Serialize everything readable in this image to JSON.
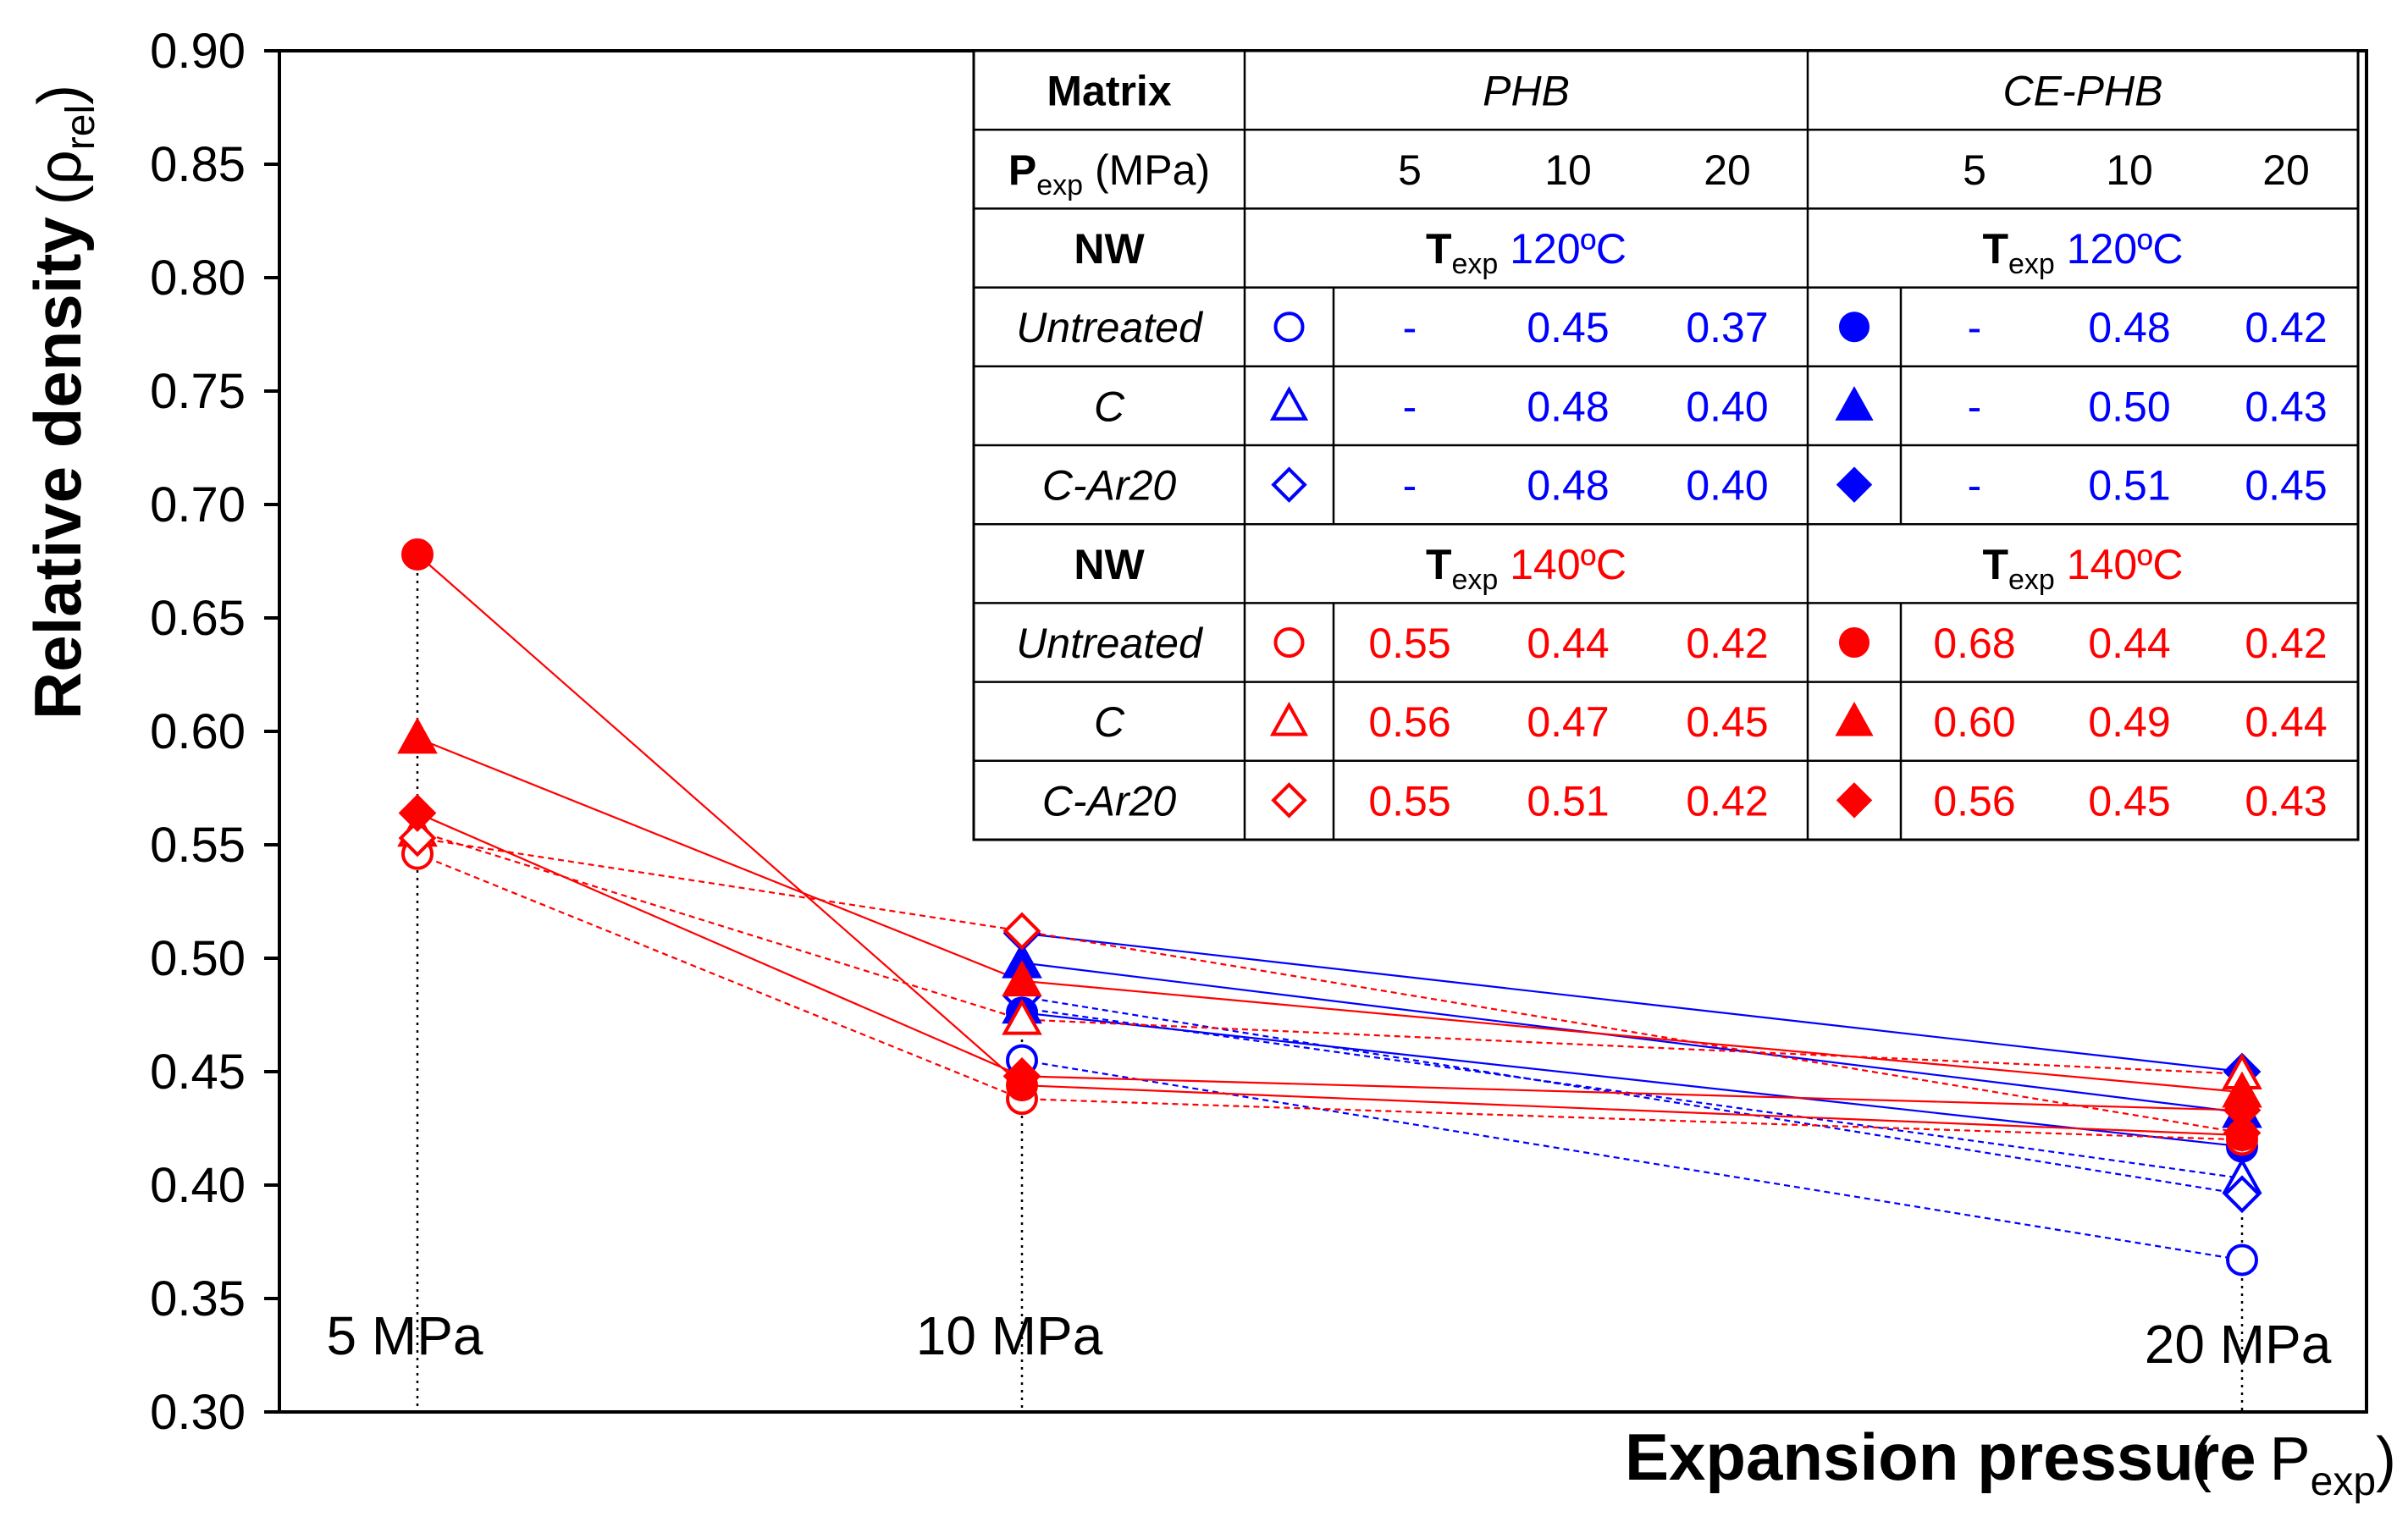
{
  "chart_data": {
    "type": "line",
    "title": "",
    "ylabel": "Relative density",
    "ylabel_symbol": "ρ",
    "ylabel_sub": "rel",
    "xlabel": "Expansion pressure",
    "xlabel_symbol": "P",
    "xlabel_sub": "exp",
    "ylim": [
      0.3,
      0.9
    ],
    "yticks": [
      "0.30",
      "0.35",
      "0.40",
      "0.45",
      "0.50",
      "0.55",
      "0.60",
      "0.65",
      "0.70",
      "0.75",
      "0.80",
      "0.85",
      "0.90"
    ],
    "categories": [
      "5 MPa",
      "10 MPa",
      "20 MPa"
    ],
    "series": [
      {
        "name": "PHB Untreated 120ºC",
        "color": "#0000ff",
        "marker": "circle",
        "filled": false,
        "dashed": true,
        "values": [
          null,
          0.455,
          0.367
        ]
      },
      {
        "name": "PHB C 120ºC",
        "color": "#0000ff",
        "marker": "triangle",
        "filled": false,
        "dashed": true,
        "values": [
          null,
          0.478,
          0.403
        ]
      },
      {
        "name": "PHB C-Ar20 120ºC",
        "color": "#0000ff",
        "marker": "diamond",
        "filled": false,
        "dashed": true,
        "values": [
          null,
          0.483,
          0.396
        ]
      },
      {
        "name": "CE-PHB Untreated 120ºC",
        "color": "#0000ff",
        "marker": "circle",
        "filled": true,
        "dashed": false,
        "values": [
          null,
          0.476,
          0.417
        ]
      },
      {
        "name": "CE-PHB C 120ºC",
        "color": "#0000ff",
        "marker": "triangle",
        "filled": true,
        "dashed": false,
        "values": [
          null,
          0.498,
          0.432
        ]
      },
      {
        "name": "CE-PHB C-Ar20 120ºC",
        "color": "#0000ff",
        "marker": "diamond",
        "filled": true,
        "dashed": false,
        "values": [
          null,
          0.511,
          0.45
        ]
      },
      {
        "name": "PHB Untreated 140ºC",
        "color": "#ff0000",
        "marker": "circle",
        "filled": false,
        "dashed": true,
        "values": [
          0.546,
          0.438,
          0.42
        ]
      },
      {
        "name": "PHB C 140ºC",
        "color": "#ff0000",
        "marker": "triangle",
        "filled": false,
        "dashed": true,
        "values": [
          0.556,
          0.473,
          0.449
        ]
      },
      {
        "name": "PHB C-Ar20 140ºC",
        "color": "#ff0000",
        "marker": "diamond",
        "filled": false,
        "dashed": true,
        "values": [
          0.553,
          0.512,
          0.423
        ]
      },
      {
        "name": "CE-PHB Untreated 140ºC",
        "color": "#ff0000",
        "marker": "circle",
        "filled": true,
        "dashed": false,
        "values": [
          0.678,
          0.444,
          0.422
        ]
      },
      {
        "name": "CE-PHB C 140ºC",
        "color": "#ff0000",
        "marker": "triangle",
        "filled": true,
        "dashed": false,
        "values": [
          0.597,
          0.49,
          0.441
        ]
      },
      {
        "name": "CE-PHB C-Ar20 140ºC",
        "color": "#ff0000",
        "marker": "diamond",
        "filled": true,
        "dashed": false,
        "values": [
          0.564,
          0.448,
          0.433
        ]
      }
    ],
    "table": {
      "matrix_label": "Matrix",
      "matrix_phb": "PHB",
      "matrix_cephb": "CE-PHB",
      "pexp_label_main": "P",
      "pexp_label_sub": "exp",
      "pexp_label_unit": " (MPa)",
      "pressures": [
        "5",
        "10",
        "20"
      ],
      "nw_label": "NW",
      "texp_main": "T",
      "texp_sub": "exp",
      "temp_120": " 120ºC",
      "temp_140": " 140ºC",
      "rows_120": [
        {
          "name": "Untreated",
          "phb": [
            "-",
            "0.45",
            "0.37"
          ],
          "cephb": [
            "-",
            "0.48",
            "0.42"
          ]
        },
        {
          "name": "C",
          "phb": [
            "-",
            "0.48",
            "0.40"
          ],
          "cephb": [
            "-",
            "0.50",
            "0.43"
          ]
        },
        {
          "name": "C-Ar20",
          "phb": [
            "-",
            "0.48",
            "0.40"
          ],
          "cephb": [
            "-",
            "0.51",
            "0.45"
          ]
        }
      ],
      "rows_140": [
        {
          "name": "Untreated",
          "phb": [
            "0.55",
            "0.44",
            "0.42"
          ],
          "cephb": [
            "0.68",
            "0.44",
            "0.42"
          ]
        },
        {
          "name": "C",
          "phb": [
            "0.56",
            "0.47",
            "0.45"
          ],
          "cephb": [
            "0.60",
            "0.49",
            "0.44"
          ]
        },
        {
          "name": "C-Ar20",
          "phb": [
            "0.55",
            "0.51",
            "0.42"
          ],
          "cephb": [
            "0.56",
            "0.45",
            "0.43"
          ]
        }
      ]
    }
  }
}
